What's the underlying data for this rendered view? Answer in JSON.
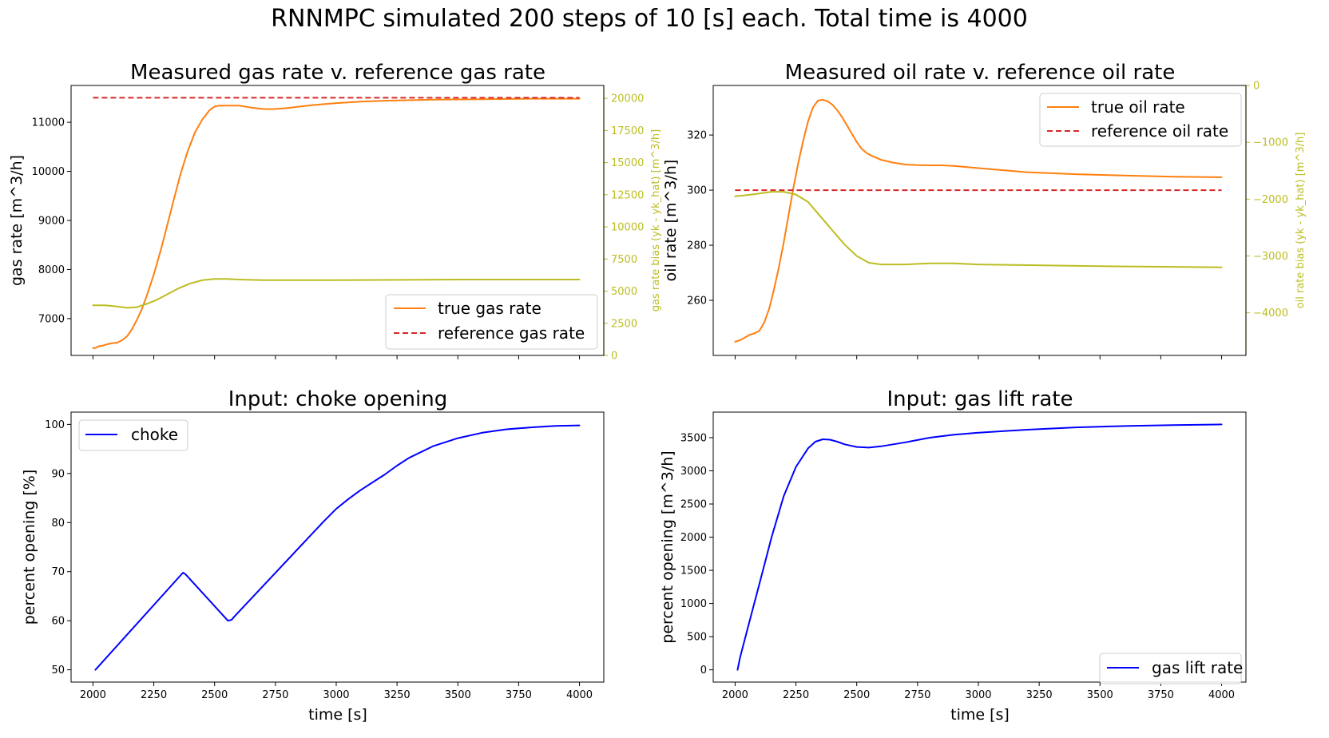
{
  "figure": {
    "suptitle": "RNNMPC simulated 200 steps of 10 [s] each. Total time is 4000"
  },
  "colors": {
    "true_rate": "#ff7f0e",
    "reference": "#d62728",
    "bias": "#bcbd22",
    "input": "#0000ff",
    "axes": "#000000"
  },
  "chart_data": [
    {
      "id": "gas",
      "type": "line",
      "title": "Measured gas rate v. reference gas rate",
      "xlabel": "",
      "ylabel": "gas rate [m^3/h]",
      "xlim": [
        1910,
        4100
      ],
      "ylim": [
        6250,
        11750
      ],
      "xticks": [
        2000,
        2250,
        2500,
        2750,
        3000,
        3250,
        3500,
        3750,
        4000
      ],
      "show_xtick_labels": false,
      "yticks": [
        7000,
        8000,
        9000,
        10000,
        11000
      ],
      "grid": false,
      "legend_position": "bottom-right",
      "series": [
        {
          "name": "true gas rate",
          "axis": "left",
          "style": "solid",
          "color": "#ff7f0e",
          "x": [
            2000,
            2010,
            2020,
            2040,
            2060,
            2080,
            2100,
            2120,
            2140,
            2160,
            2180,
            2200,
            2220,
            2250,
            2280,
            2300,
            2330,
            2360,
            2390,
            2420,
            2450,
            2480,
            2500,
            2520,
            2550,
            2600,
            2650,
            2700,
            2750,
            2800,
            2850,
            2900,
            3000,
            3100,
            3200,
            3400,
            3600,
            3800,
            4000
          ],
          "y": [
            6400,
            6400,
            6430,
            6450,
            6480,
            6500,
            6510,
            6560,
            6640,
            6780,
            6970,
            7180,
            7450,
            7900,
            8420,
            8800,
            9380,
            9950,
            10420,
            10800,
            11060,
            11250,
            11320,
            11340,
            11340,
            11340,
            11300,
            11270,
            11270,
            11290,
            11320,
            11350,
            11390,
            11420,
            11440,
            11460,
            11470,
            11480,
            11480
          ]
        },
        {
          "name": "reference gas rate",
          "axis": "left",
          "style": "dashed",
          "color": "#d62728",
          "x": [
            2000,
            4000
          ],
          "y": [
            11500,
            11500
          ]
        },
        {
          "name": "gas rate bias",
          "axis": "right",
          "style": "solid",
          "color": "#bcbd22",
          "x": [
            2000,
            2050,
            2100,
            2140,
            2180,
            2220,
            2260,
            2300,
            2350,
            2400,
            2450,
            2500,
            2550,
            2600,
            2700,
            2800,
            3000,
            3500,
            4000
          ],
          "y": [
            3900,
            3900,
            3800,
            3700,
            3750,
            4000,
            4300,
            4700,
            5200,
            5600,
            5850,
            5950,
            5950,
            5900,
            5850,
            5850,
            5850,
            5900,
            5900
          ]
        }
      ],
      "right_axis": {
        "label": "gas rate bias (yk - yk_hat) [m^3/h]",
        "ylim": [
          0,
          21000
        ],
        "ticks": [
          0,
          2500,
          5000,
          7500,
          10000,
          12500,
          15000,
          17500,
          20000
        ]
      }
    },
    {
      "id": "oil",
      "type": "line",
      "title": "Measured oil rate v. reference oil rate",
      "xlabel": "",
      "ylabel": "oil rate [m^3/h]",
      "xlim": [
        1910,
        4100
      ],
      "ylim": [
        240,
        338
      ],
      "xticks": [
        2000,
        2250,
        2500,
        2750,
        3000,
        3250,
        3500,
        3750,
        4000
      ],
      "show_xtick_labels": false,
      "yticks": [
        260,
        280,
        300,
        320
      ],
      "grid": false,
      "legend_position": "top-right",
      "series": [
        {
          "name": "true oil rate",
          "axis": "left",
          "style": "solid",
          "color": "#ff7f0e",
          "x": [
            2000,
            2020,
            2040,
            2060,
            2080,
            2100,
            2120,
            2140,
            2160,
            2180,
            2200,
            2220,
            2240,
            2260,
            2280,
            2300,
            2320,
            2340,
            2360,
            2380,
            2400,
            2420,
            2440,
            2460,
            2480,
            2500,
            2520,
            2540,
            2560,
            2600,
            2650,
            2700,
            2750,
            2800,
            2850,
            2900,
            3000,
            3200,
            3400,
            3600,
            3800,
            4000
          ],
          "y": [
            245,
            245.5,
            246.5,
            247.5,
            248,
            249,
            252,
            257,
            264,
            272,
            281,
            291,
            301,
            310,
            318,
            325,
            330,
            332.5,
            332.8,
            332.3,
            331,
            329,
            326.5,
            323.5,
            320.5,
            317.5,
            315,
            313.5,
            312.5,
            311,
            310,
            309.3,
            309.1,
            309,
            309,
            308.8,
            308,
            306.5,
            305.8,
            305.3,
            304.9,
            304.7
          ]
        },
        {
          "name": "reference oil rate",
          "axis": "left",
          "style": "dashed",
          "color": "#d62728",
          "x": [
            2000,
            4000
          ],
          "y": [
            300,
            300
          ]
        },
        {
          "name": "oil rate bias",
          "axis": "right",
          "style": "solid",
          "color": "#bcbd22",
          "x": [
            2000,
            2050,
            2100,
            2150,
            2200,
            2250,
            2300,
            2350,
            2400,
            2450,
            2500,
            2550,
            2600,
            2700,
            2800,
            2900,
            3000,
            3500,
            4000
          ],
          "y": [
            -1950,
            -1930,
            -1900,
            -1870,
            -1870,
            -1920,
            -2050,
            -2300,
            -2550,
            -2800,
            -3000,
            -3120,
            -3150,
            -3150,
            -3130,
            -3130,
            -3150,
            -3180,
            -3200
          ]
        }
      ],
      "right_axis": {
        "label": "oil rate bias (yk - yk_hat) [m^3/h]",
        "ylim": [
          -4750,
          0
        ],
        "ticks": [
          0,
          -1000,
          -2000,
          -3000,
          -4000
        ]
      }
    },
    {
      "id": "choke",
      "type": "line",
      "title": "Input: choke opening",
      "xlabel": "time [s]",
      "ylabel": "percent opening [%]",
      "xlim": [
        1910,
        4100
      ],
      "ylim": [
        47.5,
        102.5
      ],
      "xticks": [
        2000,
        2250,
        2500,
        2750,
        3000,
        3250,
        3500,
        3750,
        4000
      ],
      "show_xtick_labels": true,
      "yticks": [
        50,
        60,
        70,
        80,
        90,
        100
      ],
      "grid": false,
      "legend_position": "top-left",
      "series": [
        {
          "name": "choke",
          "axis": "left",
          "style": "solid",
          "color": "#0000ff",
          "x": [
            2010,
            2370,
            2380,
            2555,
            2570,
            2580,
            2950,
            3000,
            3050,
            3100,
            3200,
            3250,
            3300,
            3400,
            3500,
            3600,
            3700,
            3800,
            3900,
            4000
          ],
          "y": [
            50,
            69.8,
            69.5,
            60,
            60.2,
            60.8,
            80.3,
            82.8,
            84.8,
            86.6,
            89.8,
            91.6,
            93.2,
            95.6,
            97.2,
            98.3,
            99,
            99.4,
            99.7,
            99.8
          ]
        }
      ]
    },
    {
      "id": "gaslift",
      "type": "line",
      "title": "Input: gas lift rate",
      "xlabel": "time [s]",
      "ylabel": "percent opening [m^3/h]",
      "xlim": [
        1910,
        4100
      ],
      "ylim": [
        -185,
        3885
      ],
      "xticks": [
        2000,
        2250,
        2500,
        2750,
        3000,
        3250,
        3500,
        3750,
        4000
      ],
      "show_xtick_labels": true,
      "yticks": [
        0,
        500,
        1000,
        1500,
        2000,
        2500,
        3000,
        3500
      ],
      "grid": false,
      "legend_position": "bottom-right",
      "series": [
        {
          "name": "gas lift rate",
          "axis": "left",
          "style": "solid",
          "color": "#0000ff",
          "x": [
            2010,
            2020,
            2050,
            2100,
            2150,
            2200,
            2250,
            2300,
            2330,
            2360,
            2390,
            2420,
            2450,
            2500,
            2550,
            2600,
            2700,
            2800,
            2900,
            3000,
            3200,
            3400,
            3600,
            3800,
            4000
          ],
          "y": [
            0,
            180,
            600,
            1300,
            2000,
            2620,
            3060,
            3340,
            3440,
            3475,
            3470,
            3440,
            3400,
            3360,
            3350,
            3370,
            3430,
            3500,
            3545,
            3575,
            3620,
            3655,
            3675,
            3690,
            3700
          ]
        }
      ]
    }
  ]
}
